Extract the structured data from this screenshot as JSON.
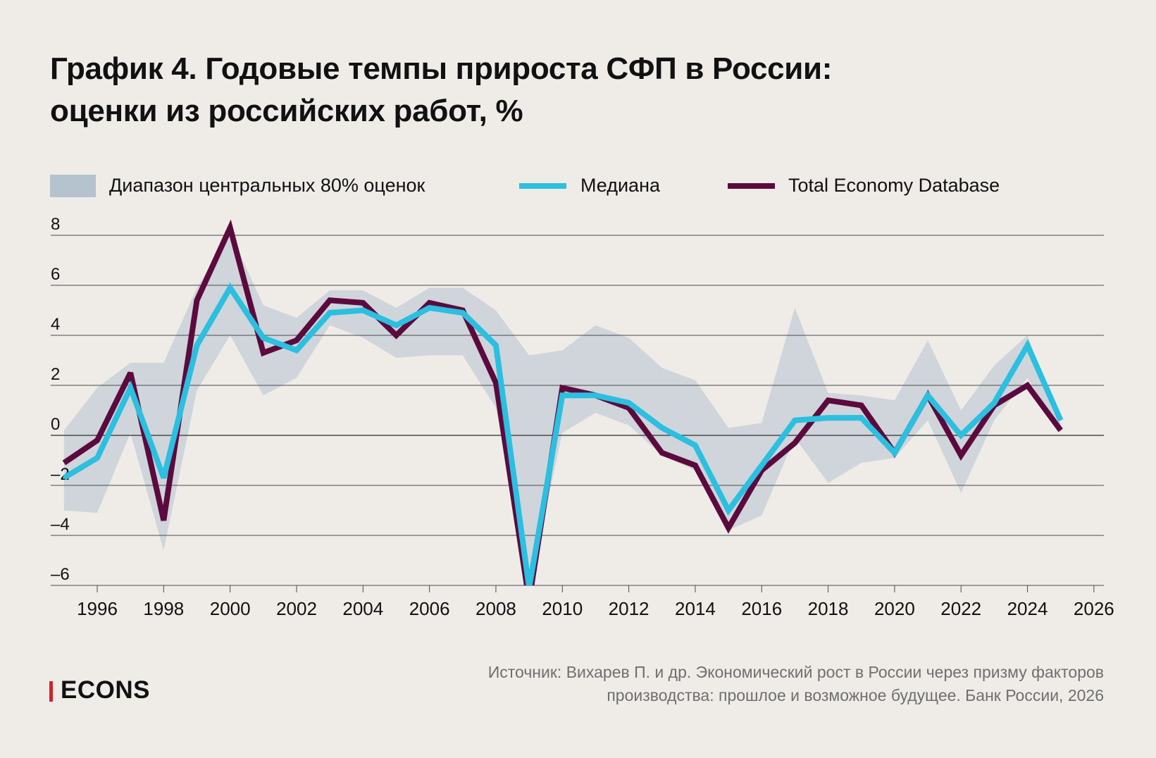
{
  "header": {
    "title_line1": "График 4. Годовые темпы прироста СФП в России:",
    "title_line2": "оценки из российских работ, %"
  },
  "legend": {
    "band": "Диапазон центральных 80% оценок",
    "median": "Медиана",
    "ted": "Total Economy Database"
  },
  "colors": {
    "band": "#b4c3cd",
    "median": "#2bbfe0",
    "ted": "#5c0a3e",
    "grid": "#4a4a4a",
    "background": "#efece8",
    "logo_bar": "#d1232a"
  },
  "chart_data": {
    "type": "line",
    "xlim": [
      1994.6,
      2026.3
    ],
    "ylim": [
      -6,
      8
    ],
    "y_ticks": [
      8,
      6,
      4,
      2,
      0,
      -2,
      -4,
      -6
    ],
    "y_tick_labels": [
      "8",
      "6",
      "4",
      "2",
      "0",
      "–2",
      "–4",
      "–6"
    ],
    "x_ticks": [
      1996,
      1998,
      2000,
      2002,
      2004,
      2006,
      2008,
      2010,
      2012,
      2014,
      2016,
      2018,
      2020,
      2022,
      2024,
      2026
    ],
    "grid": true,
    "legend_position": "top-left",
    "x": [
      1995,
      1996,
      1997,
      1998,
      1999,
      2000,
      2001,
      2002,
      2003,
      2004,
      2005,
      2006,
      2007,
      2008,
      2009,
      2010,
      2011,
      2012,
      2013,
      2014,
      2015,
      2016,
      2017,
      2018,
      2019,
      2020,
      2021,
      2022,
      2023,
      2024,
      2025
    ],
    "band": {
      "name": "Диапазон центральных 80% оценок",
      "upper": [
        0.2,
        1.9,
        2.9,
        2.9,
        5.9,
        8.1,
        5.2,
        4.7,
        5.8,
        5.8,
        5.1,
        5.9,
        5.9,
        5.0,
        3.2,
        3.4,
        4.4,
        3.9,
        2.7,
        2.2,
        0.3,
        0.5,
        5.1,
        1.7,
        1.6,
        1.4,
        3.8,
        1.0,
        2.8,
        4.0,
        0.5
      ],
      "lower": [
        -3.0,
        -3.1,
        0.1,
        -4.6,
        1.8,
        4.0,
        1.6,
        2.3,
        4.4,
        3.9,
        3.1,
        3.2,
        3.2,
        1.1,
        -6.1,
        0.1,
        0.9,
        0.4,
        -0.8,
        -1.4,
        -3.8,
        -3.2,
        -0.1,
        -1.9,
        -1.1,
        -0.9,
        0.6,
        -2.3,
        0.6,
        2.3,
        0.1
      ]
    },
    "series": [
      {
        "name": "Медиана",
        "values": [
          -1.7,
          -0.9,
          1.9,
          -1.7,
          3.6,
          5.9,
          3.9,
          3.4,
          4.9,
          5.0,
          4.4,
          5.1,
          4.9,
          3.6,
          -6.1,
          1.6,
          1.6,
          1.3,
          0.3,
          -0.4,
          -3.0,
          -1.2,
          0.6,
          0.7,
          0.7,
          -0.7,
          1.6,
          0.0,
          1.3,
          3.6,
          0.6
        ]
      },
      {
        "name": "Total Economy Database",
        "values": [
          -1.1,
          -0.2,
          2.5,
          -3.4,
          5.4,
          8.3,
          3.3,
          3.8,
          5.4,
          5.3,
          4.0,
          5.3,
          5.0,
          2.1,
          -6.6,
          1.9,
          1.6,
          1.1,
          -0.7,
          -1.2,
          -3.7,
          -1.4,
          -0.3,
          1.4,
          1.2,
          -0.7,
          1.6,
          -0.8,
          1.2,
          2.0,
          0.2
        ]
      }
    ]
  },
  "footer": {
    "logo": "ECONS",
    "source_line1": "Источник: Вихарев П. и др. Экономический рост в России через призму факторов",
    "source_line2": "производства: прошлое и возможное будущее. Банк России, 2026"
  }
}
